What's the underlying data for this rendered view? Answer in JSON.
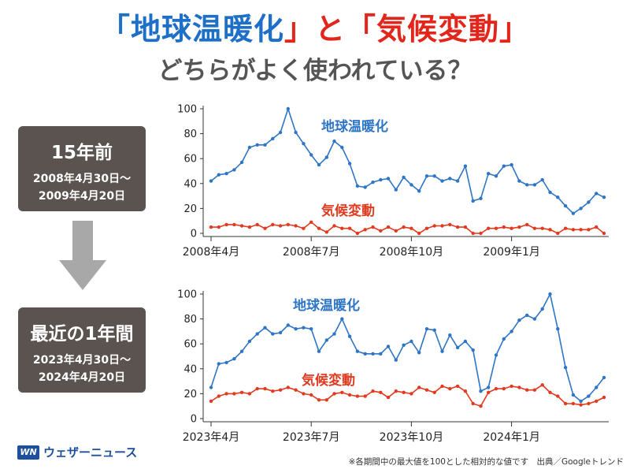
{
  "header": {
    "title_q1": "「",
    "title_term1": "地球温暖化",
    "title_mid": "」と「",
    "title_term2": "気候変動",
    "title_q2": "」",
    "subtitle": "どちらがよく使われている？"
  },
  "panels": [
    {
      "heading": "15年前",
      "range_start": "2008年4月30日～",
      "range_end": "2009年4月20日"
    },
    {
      "heading": "最近の1年間",
      "range_start": "2023年4月30日～",
      "range_end": "2024年4月20日"
    }
  ],
  "logo": {
    "mark": "WN",
    "text": "ウェザーニュース"
  },
  "footer": {
    "note": "※各期間中の最大値を100とした相対的な値です　出典／Googleトレンド"
  },
  "colors": {
    "blue": "#2f75c5",
    "red": "#e23a1f",
    "panel": "#5b5350",
    "title_blue": "#1e6fc8",
    "title_red": "#e2261b"
  },
  "chart_data": [
    {
      "type": "line",
      "ylim": [
        0,
        100
      ],
      "yticks": [
        "0",
        "20",
        "40",
        "60",
        "80",
        "100"
      ],
      "xticks": [
        {
          "label": "2008年4月",
          "index": 0
        },
        {
          "label": "2008年7月",
          "index": 13
        },
        {
          "label": "2008年10月",
          "index": 26
        },
        {
          "label": "2009年1月",
          "index": 39
        }
      ],
      "grid": false,
      "series": [
        {
          "name": "地球温暖化",
          "color": "#2f75c5",
          "values": [
            42,
            47,
            48,
            51,
            57,
            69,
            71,
            71,
            76,
            81,
            100,
            81,
            72,
            63,
            55,
            61,
            74,
            69,
            56,
            38,
            37,
            41,
            43,
            44,
            35,
            45,
            39,
            34,
            46,
            46,
            42,
            44,
            42,
            54,
            26,
            28,
            48,
            46,
            54,
            55,
            42,
            39,
            39,
            43,
            33,
            29,
            22,
            16,
            20,
            25,
            32,
            29
          ]
        },
        {
          "name": "気候変動",
          "color": "#e23a1f",
          "values": [
            5,
            5,
            7,
            7,
            6,
            5,
            7,
            4,
            7,
            6,
            7,
            6,
            4,
            9,
            4,
            1,
            6,
            4,
            4,
            0,
            3,
            5,
            2,
            5,
            2,
            5,
            4,
            0,
            4,
            6,
            6,
            7,
            5,
            5,
            0,
            0,
            4,
            4,
            5,
            4,
            5,
            7,
            4,
            4,
            3,
            0,
            4,
            3,
            3,
            3,
            5,
            0
          ]
        }
      ]
    },
    {
      "type": "line",
      "ylim": [
        0,
        100
      ],
      "yticks": [
        "0",
        "20",
        "40",
        "60",
        "80",
        "100"
      ],
      "xticks": [
        {
          "label": "2023年4月",
          "index": 0
        },
        {
          "label": "2023年7月",
          "index": 13
        },
        {
          "label": "2023年10月",
          "index": 26
        },
        {
          "label": "2024年1月",
          "index": 39
        }
      ],
      "grid": false,
      "series": [
        {
          "name": "地球温暖化",
          "color": "#2f75c5",
          "values": [
            25,
            44,
            45,
            48,
            54,
            62,
            68,
            73,
            68,
            69,
            75,
            72,
            73,
            72,
            54,
            63,
            68,
            80,
            66,
            54,
            52,
            52,
            52,
            58,
            47,
            59,
            62,
            53,
            72,
            71,
            54,
            67,
            57,
            62,
            55,
            22,
            25,
            51,
            64,
            70,
            79,
            83,
            80,
            88,
            100,
            72,
            41,
            19,
            14,
            18,
            25,
            33
          ]
        },
        {
          "name": "気候変動",
          "color": "#e23a1f",
          "values": [
            14,
            18,
            20,
            20,
            21,
            20,
            24,
            24,
            22,
            23,
            25,
            23,
            20,
            19,
            15,
            15,
            20,
            21,
            19,
            18,
            18,
            22,
            21,
            17,
            22,
            21,
            20,
            25,
            23,
            21,
            26,
            24,
            26,
            22,
            12,
            10,
            21,
            24,
            24,
            26,
            25,
            23,
            23,
            27,
            21,
            18,
            12,
            12,
            11,
            12,
            14,
            17
          ]
        }
      ]
    }
  ]
}
